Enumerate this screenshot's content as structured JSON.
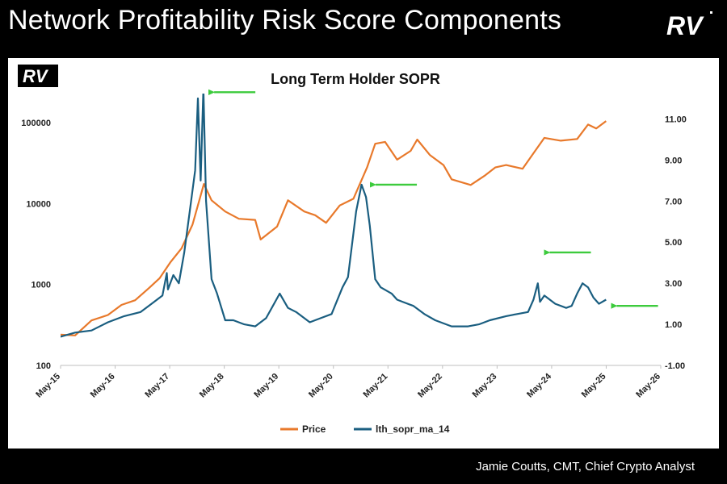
{
  "slide": {
    "title": "Network Profitability Risk Score Components",
    "logo_text": "RV",
    "footer": "Jamie Coutts, CMT, Chief Crypto Analyst"
  },
  "colors": {
    "price": "#E8792B",
    "sopr": "#1A5E80",
    "arrow": "#3DCB3D",
    "background": "#000000",
    "panel": "#FFFFFF"
  },
  "chart_data": {
    "type": "line",
    "title": "Long Term Holder SOPR",
    "logo_text": "RV",
    "x_labels": [
      "May-15",
      "May-16",
      "May-17",
      "May-18",
      "May-19",
      "May-20",
      "May-21",
      "May-22",
      "May-23",
      "May-24",
      "May-25",
      "May-26"
    ],
    "xlim": [
      2015.333,
      2026.333
    ],
    "left_axis": {
      "scale": "log",
      "ticks": [
        100,
        1000,
        10000,
        100000
      ],
      "tick_labels": [
        "100",
        "1000",
        "10000",
        "100000"
      ],
      "range": [
        100,
        200000
      ]
    },
    "right_axis": {
      "ticks": [
        -1,
        1,
        3,
        5,
        7,
        9,
        11
      ],
      "tick_labels": [
        "-1.00",
        "1.00",
        "3.00",
        "5.00",
        "7.00",
        "9.00",
        "11.00"
      ],
      "range": [
        -1,
        12
      ]
    },
    "series": [
      {
        "name": "Price",
        "axis": "left",
        "x": [
          2015.33,
          2015.6,
          2015.9,
          2016.2,
          2016.45,
          2016.7,
          2016.95,
          2017.15,
          2017.35,
          2017.55,
          2017.75,
          2017.96,
          2018.1,
          2018.35,
          2018.6,
          2018.9,
          2019.0,
          2019.3,
          2019.5,
          2019.8,
          2020.0,
          2020.2,
          2020.45,
          2020.7,
          2020.95,
          2021.1,
          2021.28,
          2021.5,
          2021.75,
          2021.87,
          2022.1,
          2022.35,
          2022.5,
          2022.85,
          2023.1,
          2023.3,
          2023.5,
          2023.8,
          2024.0,
          2024.2,
          2024.5,
          2024.8,
          2025.0,
          2025.15,
          2025.33
        ],
        "y": [
          240,
          235,
          360,
          420,
          560,
          640,
          900,
          1200,
          1900,
          2800,
          5500,
          17500,
          11000,
          8000,
          6500,
          6300,
          3600,
          5200,
          11000,
          8000,
          7200,
          5800,
          9500,
          11500,
          28000,
          55000,
          58000,
          35000,
          45000,
          62000,
          40000,
          30000,
          20000,
          17000,
          22000,
          28000,
          30000,
          27000,
          42000,
          65000,
          60000,
          63000,
          95000,
          85000,
          105000
        ]
      },
      {
        "name": "lth_sopr_ma_14",
        "axis": "right",
        "x": [
          2015.33,
          2015.6,
          2015.9,
          2016.2,
          2016.5,
          2016.8,
          2017.0,
          2017.2,
          2017.28,
          2017.3,
          2017.4,
          2017.5,
          2017.6,
          2017.7,
          2017.8,
          2017.85,
          2017.9,
          2017.95,
          2018.0,
          2018.1,
          2018.2,
          2018.35,
          2018.5,
          2018.7,
          2018.9,
          2019.1,
          2019.35,
          2019.5,
          2019.65,
          2019.9,
          2020.1,
          2020.3,
          2020.5,
          2020.6,
          2020.75,
          2020.85,
          2020.93,
          2021.0,
          2021.1,
          2021.2,
          2021.4,
          2021.5,
          2021.6,
          2021.8,
          2022.0,
          2022.2,
          2022.5,
          2022.8,
          2023.0,
          2023.2,
          2023.5,
          2023.7,
          2023.9,
          2024.0,
          2024.08,
          2024.12,
          2024.2,
          2024.4,
          2024.6,
          2024.7,
          2024.8,
          2024.9,
          2025.0,
          2025.1,
          2025.2,
          2025.33
        ],
        "y": [
          0.4,
          0.6,
          0.7,
          1.1,
          1.4,
          1.6,
          2.0,
          2.4,
          3.5,
          2.7,
          3.4,
          3.0,
          4.5,
          6.5,
          8.5,
          12,
          8.0,
          12.5,
          7.0,
          3.2,
          2.5,
          1.2,
          1.2,
          1.0,
          0.9,
          1.3,
          2.5,
          1.8,
          1.6,
          1.1,
          1.3,
          1.5,
          2.8,
          3.3,
          6.5,
          7.8,
          7.2,
          5.8,
          3.2,
          2.8,
          2.5,
          2.2,
          2.1,
          1.9,
          1.5,
          1.2,
          0.9,
          0.9,
          1.0,
          1.2,
          1.4,
          1.5,
          1.6,
          2.2,
          3.0,
          2.1,
          2.4,
          2.0,
          1.8,
          1.9,
          2.5,
          3.0,
          2.8,
          2.3,
          2.0,
          2.2
        ]
      }
    ],
    "legend": {
      "position": "bottom-center",
      "entries": [
        "Price",
        "lth_sopr_ma_14"
      ]
    },
    "annotations": [
      {
        "type": "arrow",
        "series": "lth_sopr_ma_14",
        "x": 2017.97,
        "y": 12.3
      },
      {
        "type": "arrow",
        "series": "lth_sopr_ma_14",
        "x": 2020.93,
        "y": 7.8
      },
      {
        "type": "arrow",
        "series": "lth_sopr_ma_14",
        "x": 2024.12,
        "y": 4.5
      },
      {
        "type": "arrow",
        "series": "lth_sopr_ma_14",
        "x": 2025.35,
        "y": 1.9
      }
    ]
  }
}
